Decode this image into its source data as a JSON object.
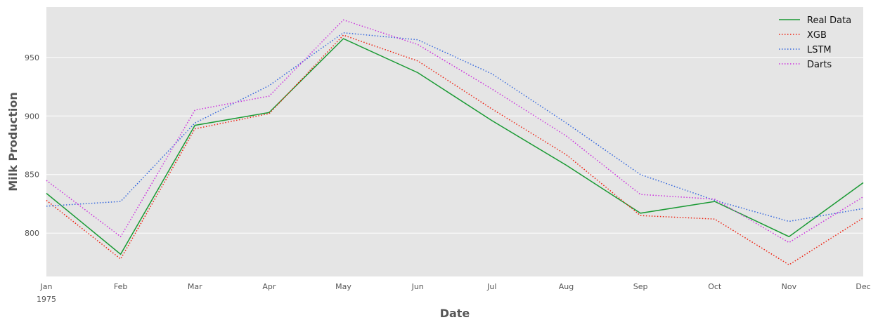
{
  "chart_data": {
    "type": "line",
    "xlabel": "Date",
    "ylabel": "Milk Production",
    "categories": [
      "Jan",
      "Feb",
      "Mar",
      "Apr",
      "May",
      "Jun",
      "Jul",
      "Aug",
      "Sep",
      "Oct",
      "Nov",
      "Dec"
    ],
    "year_label": "1975",
    "yticks": [
      800,
      850,
      900,
      950
    ],
    "ylim": [
      763,
      993
    ],
    "grid": true,
    "legend_position": "top-right",
    "background": "#e5e5e5",
    "series": [
      {
        "name": "Real Data",
        "color": "#1a9a34",
        "style": "solid",
        "values": [
          834,
          782,
          892,
          903,
          966,
          937,
          896,
          858,
          817,
          827,
          797,
          843
        ]
      },
      {
        "name": "XGB",
        "color": "#ee2211",
        "style": "dotted",
        "values": [
          828,
          778,
          889,
          902,
          969,
          947,
          906,
          867,
          815,
          812,
          773,
          813
        ]
      },
      {
        "name": "LSTM",
        "color": "#3366dd",
        "style": "dotted",
        "values": [
          823,
          827,
          894,
          926,
          971,
          965,
          936,
          894,
          850,
          828,
          810,
          821
        ]
      },
      {
        "name": "Darts",
        "color": "#cc33dd",
        "style": "dotted",
        "values": [
          845,
          797,
          905,
          917,
          982,
          961,
          923,
          883,
          833,
          829,
          792,
          831
        ]
      }
    ]
  }
}
